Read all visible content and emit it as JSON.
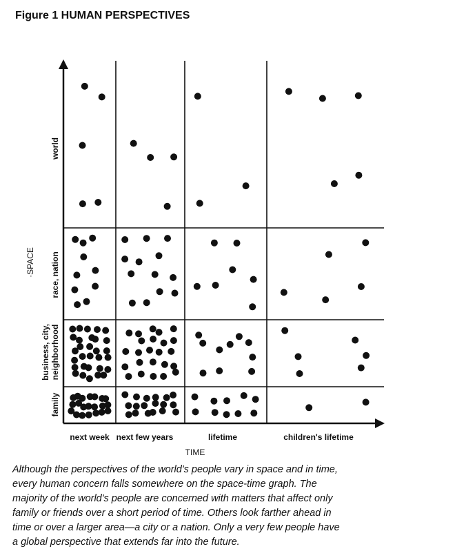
{
  "header": {
    "title": "Figure 1 HUMAN PERSPECTIVES"
  },
  "diagram": {
    "y_axis_label": "·SPACE",
    "x_axis_label": "TIME",
    "columns": [
      "next week",
      "next few years",
      "lifetime",
      "children's lifetime"
    ],
    "rows": [
      [
        "world"
      ],
      [
        "race, nation"
      ],
      [
        "business, city,",
        "neighborhood"
      ],
      [
        "family"
      ]
    ]
  },
  "caption": {
    "lines": [
      "Although the perspectives of the world's people vary in space and in time,",
      "every human concern falls somewhere on the space-time graph. The",
      "majority of the world's people are concerned with matters that affect only",
      "family or friends over a short period of time. Others look farther ahead in",
      "time or over a larger area—a city or a nation. Only a very few people have",
      "a global perspective that extends far into the future."
    ]
  }
}
